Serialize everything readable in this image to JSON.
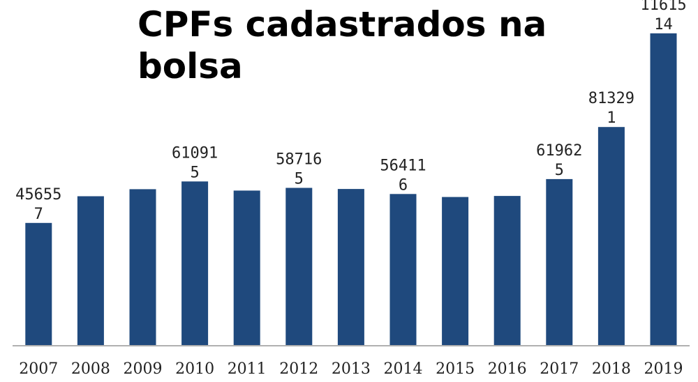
{
  "chart_data": {
    "type": "bar",
    "title_lines": [
      "CPFs cadastrados na",
      "bolsa"
    ],
    "categories": [
      "2007",
      "2008",
      "2009",
      "2010",
      "2011",
      "2012",
      "2013",
      "2014",
      "2015",
      "2016",
      "2017",
      "2018",
      "2019"
    ],
    "values": [
      456557,
      556000,
      582000,
      610915,
      577000,
      587165,
      583000,
      564116,
      553000,
      557000,
      619625,
      813291,
      1161514
    ],
    "data_labels": [
      [
        "45655",
        "7"
      ],
      null,
      null,
      [
        "61091",
        "5"
      ],
      null,
      [
        "58716",
        "5"
      ],
      null,
      [
        "56411",
        "6"
      ],
      null,
      null,
      [
        "61962",
        "5"
      ],
      [
        "81329",
        "1"
      ],
      [
        "11615",
        "14"
      ]
    ],
    "ylim": [
      0,
      1200000
    ],
    "grid": false,
    "legend": "none",
    "colors": {
      "bar": "#1f497d",
      "axis": "#b0b0b0"
    }
  }
}
